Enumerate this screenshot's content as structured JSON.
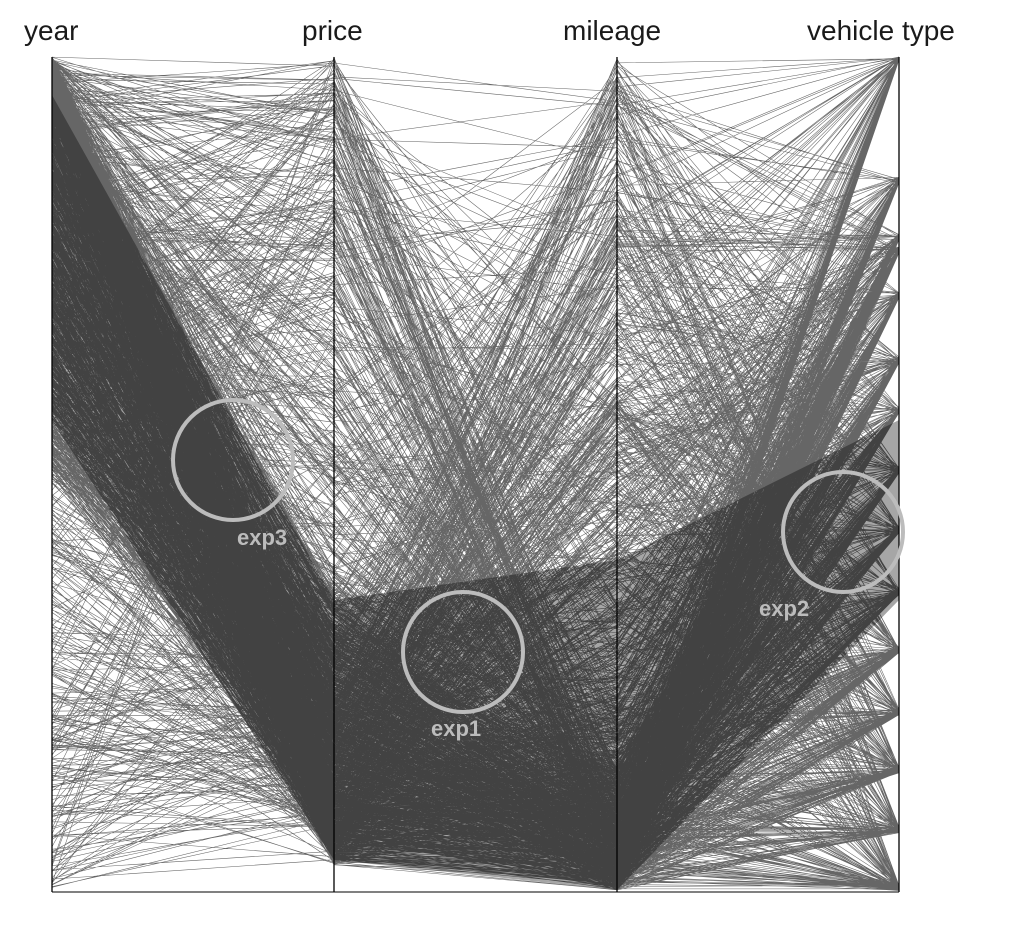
{
  "chart_data": {
    "type": "parallel-coordinates",
    "axes": [
      "year",
      "price",
      "mileage",
      "vehicle type"
    ],
    "annotations": [
      "exp1",
      "exp2",
      "exp3"
    ],
    "colors": {
      "background": "#ffffff",
      "lines": "#000000",
      "axes": "#000000",
      "highlight_circle": "#bcbcbc",
      "label_text": "#1a1a1a"
    }
  }
}
